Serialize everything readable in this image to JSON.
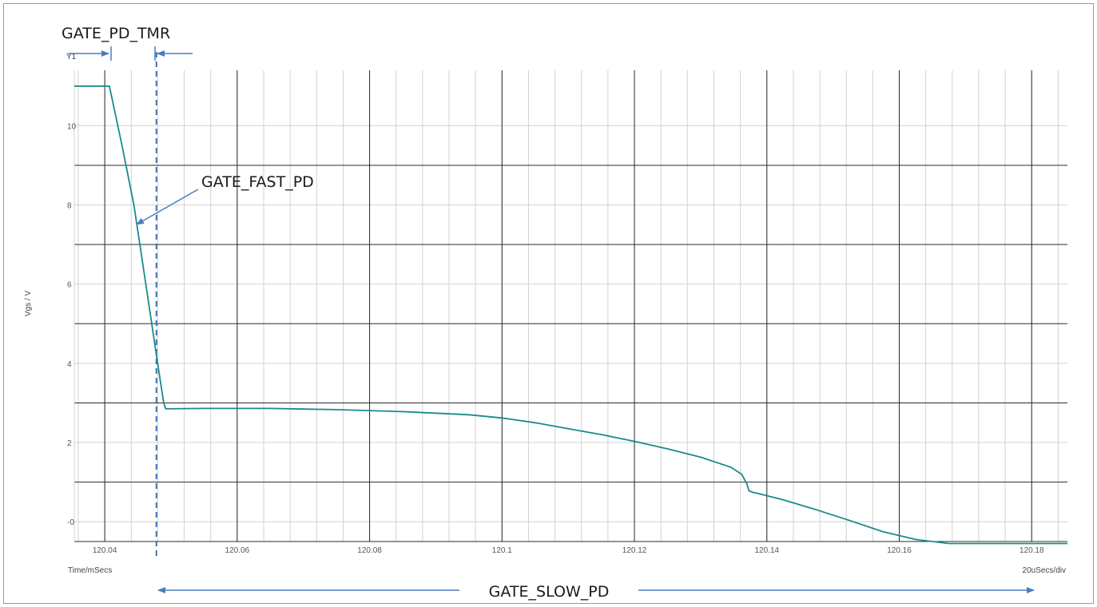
{
  "chart_data": {
    "type": "line",
    "title": "",
    "xlabel": "Time/mSecs",
    "ylabel": "Vgs / V",
    "x_scale_label": "20uSecs/div",
    "trace_label": "Y1",
    "xlim": [
      120.0354,
      120.1854
    ],
    "ylim": [
      -0.5,
      11.4
    ],
    "x_ticks": [
      120.04,
      120.06,
      120.08,
      120.1,
      120.12,
      120.14,
      120.16,
      120.18
    ],
    "x_tick_labels": [
      "120.04",
      "120.06",
      "120.08",
      "120.1",
      "120.12",
      "120.14",
      "120.16",
      "120.18"
    ],
    "y_ticks": [
      0,
      2,
      4,
      6,
      8,
      10
    ],
    "y_tick_labels": [
      "-0",
      "2",
      "4",
      "6",
      "8",
      "10"
    ],
    "major_hlines": [
      1.0,
      3.0,
      5.0,
      7.0,
      9.0
    ],
    "minor_hlines": [
      0.0,
      2.0,
      4.0,
      6.0,
      8.0,
      10.0
    ],
    "grid": true,
    "series": [
      {
        "color": "#1a8a8c",
        "points": [
          [
            120.0354,
            11.0
          ],
          [
            120.0407,
            11.0
          ],
          [
            120.0426,
            9.5
          ],
          [
            120.0444,
            8.0
          ],
          [
            120.0462,
            6.0
          ],
          [
            120.0478,
            4.2
          ],
          [
            120.0489,
            3.0
          ],
          [
            120.0492,
            2.85
          ],
          [
            120.055,
            2.86
          ],
          [
            120.065,
            2.86
          ],
          [
            120.075,
            2.83
          ],
          [
            120.085,
            2.78
          ],
          [
            120.095,
            2.7
          ],
          [
            120.1,
            2.62
          ],
          [
            120.105,
            2.5
          ],
          [
            120.11,
            2.35
          ],
          [
            120.115,
            2.2
          ],
          [
            120.12,
            2.03
          ],
          [
            120.125,
            1.84
          ],
          [
            120.13,
            1.63
          ],
          [
            120.1345,
            1.38
          ],
          [
            120.1362,
            1.2
          ],
          [
            120.137,
            0.95
          ],
          [
            120.1373,
            0.78
          ],
          [
            120.1379,
            0.74
          ],
          [
            120.1385,
            0.72
          ],
          [
            120.1425,
            0.55
          ],
          [
            120.1475,
            0.3
          ],
          [
            120.1525,
            0.03
          ],
          [
            120.1575,
            -0.25
          ],
          [
            120.1625,
            -0.45
          ],
          [
            120.1675,
            -0.55
          ],
          [
            120.1725,
            -0.55
          ],
          [
            120.1854,
            -0.55
          ]
        ]
      }
    ],
    "markers": [
      {
        "type": "dashed_vline",
        "x": 120.0478,
        "color": "#3d6fb6"
      }
    ],
    "annotations": [
      {
        "label": "GATE_PD_TMR"
      },
      {
        "label": "GATE_FAST_PD"
      },
      {
        "label": "GATE_SLOW_PD"
      }
    ],
    "annotation_color": "#4a7ebb"
  }
}
